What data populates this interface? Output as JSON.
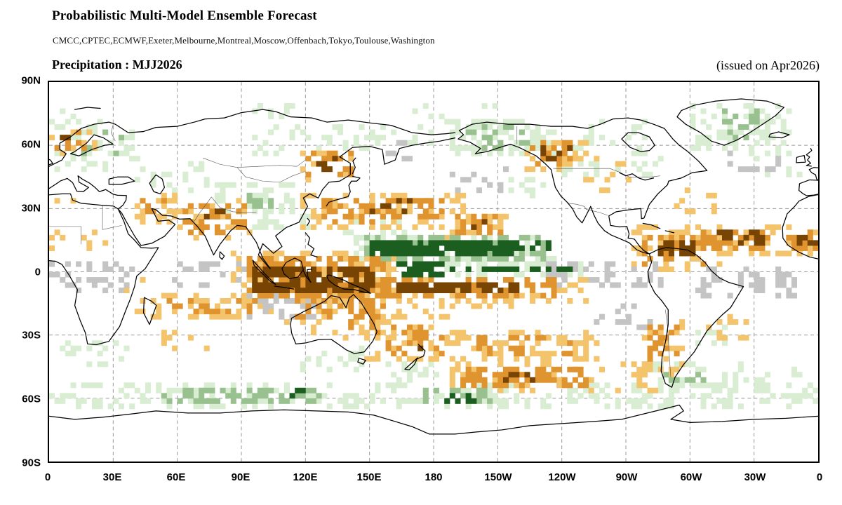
{
  "header": {
    "title": "Probabilistic Multi-Model Ensemble Forecast",
    "models": "CMCC,CPTEC,ECMWF,Exeter,Melbourne,Montreal,Moscow,Offenbach,Tokyo,Toulouse,Washington",
    "variable_label": "Precipitation : MJJ2026",
    "issued_label": "(issued on Apr2026)"
  },
  "chart_data": {
    "type": "heatmap",
    "subtype": "probabilistic tercile-category world map, Pacific-centered equirectangular",
    "title": "Probabilistic Multi-Model Ensemble Forecast",
    "variable": "Precipitation",
    "season": "MJJ2026",
    "issued": "Apr2026",
    "models": [
      "CMCC",
      "CPTEC",
      "ECMWF",
      "Exeter",
      "Melbourne",
      "Montreal",
      "Moscow",
      "Offenbach",
      "Tokyo",
      "Toulouse",
      "Washington"
    ],
    "x_ticks": [
      "0",
      "30E",
      "60E",
      "90E",
      "120E",
      "150E",
      "180",
      "150W",
      "120W",
      "90W",
      "60W",
      "30W",
      "0"
    ],
    "y_ticks": [
      "90N",
      "60N",
      "30N",
      "0",
      "30S",
      "60S",
      "90S"
    ],
    "lon_domain": [
      0,
      360
    ],
    "lat_domain": [
      -90,
      90
    ],
    "graticule_deg": 30,
    "grid": "dashed gray 30-degree graticule, black coastlines, thin country borders",
    "cell_deg": 2.5,
    "palette": {
      "g1": "#d9edd2",
      "g2": "#98c18f",
      "g3": "#1b5e20",
      "o1": "#f4c46c",
      "o2": "#e0942f",
      "o3": "#784403",
      "n": "#c4c4c4"
    },
    "categories": {
      "g": "above-normal (green, darker = higher probability)",
      "o": "below-normal (orange/brown)",
      "n": "near-normal (gray)"
    },
    "patches": [
      {
        "c": "g1",
        "x": [
          187.5,
          237.5
        ],
        "y": [
          55,
          72.5
        ],
        "d": 0.5
      },
      {
        "c": "g1",
        "x": [
          237.5,
          287.5
        ],
        "y": [
          45,
          62.5
        ],
        "d": 0.2
      },
      {
        "c": "g1",
        "x": [
          248,
          278
        ],
        "y": [
          62.5,
          72.5
        ],
        "d": 0.18
      },
      {
        "c": "g1",
        "x": [
          300,
          347.5
        ],
        "y": [
          57.5,
          80
        ],
        "d": 0.4
      },
      {
        "c": "g1",
        "x": [
          327.5,
          352.5
        ],
        "y": [
          45,
          57.5
        ],
        "d": 0.25
      },
      {
        "c": "g1",
        "x": [
          2.5,
          45
        ],
        "y": [
          47.5,
          72.5
        ],
        "d": 0.3
      },
      {
        "c": "g1",
        "x": [
          0,
          15
        ],
        "y": [
          70,
          78
        ],
        "d": 0.25
      },
      {
        "c": "g1",
        "x": [
          170,
          210
        ],
        "y": [
          70,
          78
        ],
        "d": 0.2
      },
      {
        "c": "g1",
        "x": [
          90,
          115
        ],
        "y": [
          71,
          78
        ],
        "d": 0.18
      },
      {
        "c": "g1",
        "x": [
          52.5,
          77.5
        ],
        "y": [
          37.5,
          52.5
        ],
        "d": 0.25
      },
      {
        "c": "g1",
        "x": [
          77.5,
          115
        ],
        "y": [
          27.5,
          42.5
        ],
        "d": 0.4
      },
      {
        "c": "g1",
        "x": [
          95,
          122.5
        ],
        "y": [
          20,
          30
        ],
        "d": 0.3
      },
      {
        "c": "g1",
        "x": [
          95,
          145
        ],
        "y": [
          55,
          70
        ],
        "d": 0.25
      },
      {
        "c": "g1",
        "x": [
          145,
          182.5
        ],
        "y": [
          57.5,
          70
        ],
        "d": 0.2
      },
      {
        "c": "g1",
        "x": [
          137.5,
          167.5
        ],
        "y": [
          15,
          25
        ],
        "d": 0.3
      },
      {
        "c": "g1",
        "x": [
          142.5,
          240
        ],
        "y": [
          2.5,
          17.5
        ],
        "d": 0.45
      },
      {
        "c": "g1",
        "x": [
          180,
          250
        ],
        "y": [
          -2.5,
          5
        ],
        "d": 0.35
      },
      {
        "c": "g1",
        "x": [
          0,
          360
        ],
        "y": [
          -65,
          -52.5
        ],
        "d": 0.33
      },
      {
        "c": "g1",
        "x": [
          282.5,
          312.5
        ],
        "y": [
          -57.5,
          -42.5
        ],
        "d": 0.4
      },
      {
        "c": "g1",
        "x": [
          2.5,
          37.5
        ],
        "y": [
          -45,
          -32.5
        ],
        "d": 0.28
      },
      {
        "c": "g1",
        "x": [
          312.5,
          352.5
        ],
        "y": [
          -55,
          -42.5
        ],
        "d": 0.25
      },
      {
        "c": "g1",
        "x": [
          117.5,
          147.5
        ],
        "y": [
          -47.5,
          -36
        ],
        "d": 0.22
      },
      {
        "c": "g1",
        "x": [
          157.5,
          187.5
        ],
        "y": [
          -53,
          -42.5
        ],
        "d": 0.28
      },
      {
        "c": "g1",
        "x": [
          215,
          237.5
        ],
        "y": [
          35,
          45
        ],
        "d": 0.2
      },
      {
        "c": "g1",
        "x": [
          35,
          52.5
        ],
        "y": [
          36,
          46
        ],
        "d": 0.22
      },
      {
        "c": "g1",
        "x": [
          297.5,
          317.5
        ],
        "y": [
          -36,
          -26
        ],
        "d": 0.2
      },
      {
        "c": "o1",
        "x": [
          85,
          162.5
        ],
        "y": [
          -16,
          9
        ],
        "d": 0.35
      },
      {
        "c": "o1",
        "x": [
          147.5,
          252.5
        ],
        "y": [
          -17.5,
          -2.5
        ],
        "d": 0.3
      },
      {
        "c": "o1",
        "x": [
          117.5,
          195
        ],
        "y": [
          19,
          37.5
        ],
        "d": 0.3
      },
      {
        "c": "o1",
        "x": [
          185,
          217.5
        ],
        "y": [
          15,
          27.5
        ],
        "d": 0.3
      },
      {
        "c": "o1",
        "x": [
          222.5,
          252.5
        ],
        "y": [
          47.5,
          62.5
        ],
        "d": 0.3
      },
      {
        "c": "o1",
        "x": [
          247.5,
          272.5
        ],
        "y": [
          37.5,
          55
        ],
        "d": 0.15
      },
      {
        "c": "o1",
        "x": [
          272.5,
          315
        ],
        "y": [
          -1,
          21
        ],
        "d": 0.3
      },
      {
        "c": "o1",
        "x": [
          297.5,
          355
        ],
        "y": [
          7.5,
          22.5
        ],
        "d": 0.3
      },
      {
        "c": "o1",
        "x": [
          0,
          27.5
        ],
        "y": [
          7.5,
          19
        ],
        "d": 0.22
      },
      {
        "c": "o1",
        "x": [
          57.5,
          95
        ],
        "y": [
          14,
          35
        ],
        "d": 0.25
      },
      {
        "c": "o1",
        "x": [
          37.5,
          62.5
        ],
        "y": [
          21,
          36
        ],
        "d": 0.28
      },
      {
        "c": "o1",
        "x": [
          40,
          105
        ],
        "y": [
          -24,
          -11
        ],
        "d": 0.3
      },
      {
        "c": "o1",
        "x": [
          110,
          157.5
        ],
        "y": [
          -33,
          -9
        ],
        "d": 0.25
      },
      {
        "c": "o1",
        "x": [
          147.5,
          187.5
        ],
        "y": [
          -43,
          -17.5
        ],
        "d": 0.28
      },
      {
        "c": "o1",
        "x": [
          177.5,
          257.5
        ],
        "y": [
          -43,
          -27.5
        ],
        "d": 0.26
      },
      {
        "c": "o1",
        "x": [
          182.5,
          285
        ],
        "y": [
          -58,
          -44
        ],
        "d": 0.25
      },
      {
        "c": "o1",
        "x": [
          277.5,
          297.5
        ],
        "y": [
          -50,
          -24
        ],
        "d": 0.28
      },
      {
        "c": "o1",
        "x": [
          117.5,
          145
        ],
        "y": [
          42.5,
          57.5
        ],
        "d": 0.25
      },
      {
        "c": "o1",
        "x": [
          0,
          22.5
        ],
        "y": [
          55,
          67.5
        ],
        "d": 0.25
      },
      {
        "c": "o1",
        "x": [
          27.5,
          45
        ],
        "y": [
          -12.5,
          -2.5
        ],
        "d": 0.2
      },
      {
        "c": "o1",
        "x": [
          47.5,
          82.5
        ],
        "y": [
          -38,
          -27.5
        ],
        "d": 0.18
      },
      {
        "c": "o1",
        "x": [
          292.5,
          312.5
        ],
        "y": [
          27.5,
          40
        ],
        "d": 0.15
      },
      {
        "c": "o1",
        "x": [
          342.5,
          360
        ],
        "y": [
          7.5,
          20
        ],
        "d": 0.3
      },
      {
        "c": "o1",
        "x": [
          307.5,
          332.5
        ],
        "y": [
          -34,
          -22
        ],
        "d": 0.18
      },
      {
        "c": "o1",
        "x": [
          0,
          17.5
        ],
        "y": [
          26,
          36
        ],
        "d": 0.15
      },
      {
        "c": "n",
        "x": [
          232.5,
          287.5
        ],
        "y": [
          -9,
          3
        ],
        "d": 0.42
      },
      {
        "c": "n",
        "x": [
          302.5,
          350
        ],
        "y": [
          -13,
          1
        ],
        "d": 0.35
      },
      {
        "c": "n",
        "x": [
          5,
          40
        ],
        "y": [
          -11,
          3
        ],
        "d": 0.35
      },
      {
        "c": "n",
        "x": [
          57.5,
          95
        ],
        "y": [
          -9,
          3
        ],
        "d": 0.22
      },
      {
        "c": "n",
        "x": [
          92.5,
          125
        ],
        "y": [
          -24,
          -12
        ],
        "d": 0.28
      },
      {
        "c": "n",
        "x": [
          187.5,
          215
        ],
        "y": [
          36,
          48
        ],
        "d": 0.2
      },
      {
        "c": "n",
        "x": [
          317.5,
          345
        ],
        "y": [
          44,
          57.5
        ],
        "d": 0.28
      },
      {
        "c": "n",
        "x": [
          145,
          170
        ],
        "y": [
          52.5,
          62.5
        ],
        "d": 0.2
      },
      {
        "c": "n",
        "x": [
          252.5,
          282.5
        ],
        "y": [
          -28,
          -16
        ],
        "d": 0.2
      },
      {
        "c": "n",
        "x": [
          0,
          10
        ],
        "y": [
          -8,
          4
        ],
        "d": 0.3
      },
      {
        "c": "g2",
        "x": [
          195,
          227.5
        ],
        "y": [
          57.5,
          69
        ],
        "d": 0.3
      },
      {
        "c": "g2",
        "x": [
          147.5,
          232.5
        ],
        "y": [
          5,
          16
        ],
        "d": 0.5
      },
      {
        "c": "g2",
        "x": [
          85,
          105
        ],
        "y": [
          29,
          37.5
        ],
        "d": 0.3
      },
      {
        "c": "g2",
        "x": [
          52.5,
          127.5
        ],
        "y": [
          -64,
          -55
        ],
        "d": 0.45
      },
      {
        "c": "g2",
        "x": [
          175,
          207.5
        ],
        "y": [
          -64,
          -56
        ],
        "d": 0.4
      },
      {
        "c": "g2",
        "x": [
          310,
          332.5
        ],
        "y": [
          62.5,
          76
        ],
        "d": 0.3
      },
      {
        "c": "g2",
        "x": [
          12.5,
          35
        ],
        "y": [
          54,
          66
        ],
        "d": 0.2
      },
      {
        "c": "g2",
        "x": [
          287.5,
          307.5
        ],
        "y": [
          -54,
          -45
        ],
        "d": 0.3
      },
      {
        "c": "o2",
        "x": [
          92.5,
          156
        ],
        "y": [
          -12.5,
          6
        ],
        "d": 0.6
      },
      {
        "c": "o2",
        "x": [
          155,
          236
        ],
        "y": [
          -14,
          -3
        ],
        "d": 0.5
      },
      {
        "c": "o2",
        "x": [
          127.5,
          186
        ],
        "y": [
          22.5,
          35
        ],
        "d": 0.45
      },
      {
        "c": "o2",
        "x": [
          190,
          212.5
        ],
        "y": [
          17,
          26
        ],
        "d": 0.4
      },
      {
        "c": "o2",
        "x": [
          225,
          247.5
        ],
        "y": [
          50,
          61
        ],
        "d": 0.45
      },
      {
        "c": "o2",
        "x": [
          277.5,
          307.5
        ],
        "y": [
          2.5,
          17.5
        ],
        "d": 0.45
      },
      {
        "c": "o2",
        "x": [
          304,
          347.5
        ],
        "y": [
          9,
          20
        ],
        "d": 0.45
      },
      {
        "c": "o2",
        "x": [
          62.5,
          92.5
        ],
        "y": [
          17.5,
          32
        ],
        "d": 0.35
      },
      {
        "c": "o2",
        "x": [
          42.5,
          57.5
        ],
        "y": [
          24,
          33
        ],
        "d": 0.25
      },
      {
        "c": "o2",
        "x": [
          52.5,
          97.5
        ],
        "y": [
          -21,
          -13
        ],
        "d": 0.3
      },
      {
        "c": "o2",
        "x": [
          115,
          152.5
        ],
        "y": [
          -22.5,
          -10
        ],
        "d": 0.4
      },
      {
        "c": "o2",
        "x": [
          140,
          157.5
        ],
        "y": [
          -31,
          -17
        ],
        "d": 0.35
      },
      {
        "c": "o2",
        "x": [
          157.5,
          185
        ],
        "y": [
          -41,
          -25
        ],
        "d": 0.35
      },
      {
        "c": "o2",
        "x": [
          192.5,
          252.5
        ],
        "y": [
          -55,
          -45
        ],
        "d": 0.42
      },
      {
        "c": "o2",
        "x": [
          195,
          245
        ],
        "y": [
          -41,
          -31
        ],
        "d": 0.3
      },
      {
        "c": "o2",
        "x": [
          280,
          295
        ],
        "y": [
          -44,
          -27
        ],
        "d": 0.38
      },
      {
        "c": "o2",
        "x": [
          120,
          142.5
        ],
        "y": [
          45,
          56
        ],
        "d": 0.35
      },
      {
        "c": "o2",
        "x": [
          2.5,
          17.5
        ],
        "y": [
          57.5,
          66
        ],
        "d": 0.3
      },
      {
        "c": "o2",
        "x": [
          347.5,
          360
        ],
        "y": [
          10,
          19
        ],
        "d": 0.4
      },
      {
        "c": "g3",
        "x": [
          150,
          216
        ],
        "y": [
          7.5,
          15
        ],
        "d": 0.85
      },
      {
        "c": "g3",
        "x": [
          216,
          236
        ],
        "y": [
          8,
          14
        ],
        "d": 0.5
      },
      {
        "c": "g3",
        "x": [
          161,
          184
        ],
        "y": [
          -2.5,
          4
        ],
        "d": 0.7
      },
      {
        "c": "g3",
        "x": [
          186,
          250
        ],
        "y": [
          -1,
          2.5
        ],
        "d": 0.4
      },
      {
        "c": "g3",
        "x": [
          181,
          202.5
        ],
        "y": [
          -63,
          -58
        ],
        "d": 0.35
      },
      {
        "c": "g3",
        "x": [
          103,
          120
        ],
        "y": [
          -62,
          -57
        ],
        "d": 0.25
      },
      {
        "c": "o3",
        "x": [
          95,
          152.5
        ],
        "y": [
          -10,
          2.5
        ],
        "d": 0.8
      },
      {
        "c": "o3",
        "x": [
          161,
          218
        ],
        "y": [
          -11,
          -5
        ],
        "d": 0.8
      },
      {
        "c": "o3",
        "x": [
          150,
          172.5
        ],
        "y": [
          26,
          33
        ],
        "d": 0.3
      },
      {
        "c": "o3",
        "x": [
          230,
          244
        ],
        "y": [
          52.5,
          60
        ],
        "d": 0.4
      },
      {
        "c": "o3",
        "x": [
          283,
          302.5
        ],
        "y": [
          6,
          13
        ],
        "d": 0.55
      },
      {
        "c": "o3",
        "x": [
          311,
          334
        ],
        "y": [
          11,
          18
        ],
        "d": 0.45
      },
      {
        "c": "o3",
        "x": [
          195,
          206
        ],
        "y": [
          19,
          24
        ],
        "d": 0.3
      },
      {
        "c": "o3",
        "x": [
          124,
          138
        ],
        "y": [
          47.5,
          54
        ],
        "d": 0.25
      },
      {
        "c": "o3",
        "x": [
          5,
          15
        ],
        "y": [
          59,
          64
        ],
        "d": 0.3
      },
      {
        "c": "o3",
        "x": [
          70,
          82.5
        ],
        "y": [
          22,
          28
        ],
        "d": 0.25
      },
      {
        "c": "o3",
        "x": [
          165,
          177.5
        ],
        "y": [
          -38,
          -33
        ],
        "d": 0.25
      },
      {
        "c": "o3",
        "x": [
          212.5,
          236
        ],
        "y": [
          -53,
          -47.5
        ],
        "d": 0.25
      },
      {
        "c": "o3",
        "x": [
          350,
          360
        ],
        "y": [
          12,
          17
        ],
        "d": 0.4
      }
    ]
  }
}
